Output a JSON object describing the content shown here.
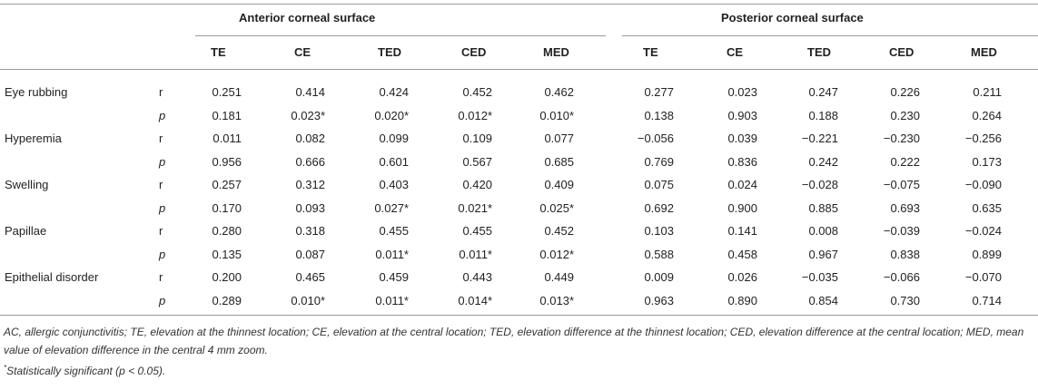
{
  "table": {
    "groups": [
      "Anterior corneal surface",
      "Posterior corneal surface"
    ],
    "columns": [
      "TE",
      "CE",
      "TED",
      "CED",
      "MED",
      "TE",
      "CE",
      "TED",
      "CED",
      "MED"
    ],
    "rows": [
      {
        "label": "Eye rubbing",
        "stats": [
          {
            "stat": "r",
            "values": [
              "0.251",
              "0.414",
              "0.424",
              "0.452",
              "0.462",
              "0.277",
              "0.023",
              "0.247",
              "0.226",
              "0.211"
            ]
          },
          {
            "stat": "p",
            "values": [
              "0.181",
              "0.023*",
              "0.020*",
              "0.012*",
              "0.010*",
              "0.138",
              "0.903",
              "0.188",
              "0.230",
              "0.264"
            ]
          }
        ]
      },
      {
        "label": "Hyperemia",
        "stats": [
          {
            "stat": "r",
            "values": [
              "0.011",
              "0.082",
              "0.099",
              "0.109",
              "0.077",
              "−0.056",
              "0.039",
              "−0.221",
              "−0.230",
              "−0.256"
            ]
          },
          {
            "stat": "p",
            "values": [
              "0.956",
              "0.666",
              "0.601",
              "0.567",
              "0.685",
              "0.769",
              "0.836",
              "0.242",
              "0.222",
              "0.173"
            ]
          }
        ]
      },
      {
        "label": "Swelling",
        "stats": [
          {
            "stat": "r",
            "values": [
              "0.257",
              "0.312",
              "0.403",
              "0.420",
              "0.409",
              "0.075",
              "0.024",
              "−0.028",
              "−0.075",
              "−0.090"
            ]
          },
          {
            "stat": "p",
            "values": [
              "0.170",
              "0.093",
              "0.027*",
              "0.021*",
              "0.025*",
              "0.692",
              "0.900",
              "0.885",
              "0.693",
              "0.635"
            ]
          }
        ]
      },
      {
        "label": "Papillae",
        "stats": [
          {
            "stat": "r",
            "values": [
              "0.280",
              "0.318",
              "0.455",
              "0.455",
              "0.452",
              "0.103",
              "0.141",
              "0.008",
              "−0.039",
              "−0.024"
            ]
          },
          {
            "stat": "p",
            "values": [
              "0.135",
              "0.087",
              "0.011*",
              "0.011*",
              "0.012*",
              "0.588",
              "0.458",
              "0.967",
              "0.838",
              "0.899"
            ]
          }
        ]
      },
      {
        "label": "Epithelial disorder",
        "stats": [
          {
            "stat": "r",
            "values": [
              "0.200",
              "0.465",
              "0.459",
              "0.443",
              "0.449",
              "0.009",
              "0.026",
              "−0.035",
              "−0.066",
              "−0.070"
            ]
          },
          {
            "stat": "p",
            "values": [
              "0.289",
              "0.010*",
              "0.011*",
              "0.014*",
              "0.013*",
              "0.963",
              "0.890",
              "0.854",
              "0.730",
              "0.714"
            ]
          }
        ]
      }
    ]
  },
  "footnotes": {
    "abbreviations": "AC, allergic conjunctivitis; TE, elevation at the thinnest location; CE, elevation at the central location; TED, elevation difference at the thinnest location; CED, elevation difference at the central location; MED, mean value of elevation difference in the central 4 mm zoom.",
    "significance": {
      "marker": "*",
      "text_before": "Statistically significant (",
      "symbol": "p",
      "text_after": " < 0.05)."
    }
  }
}
